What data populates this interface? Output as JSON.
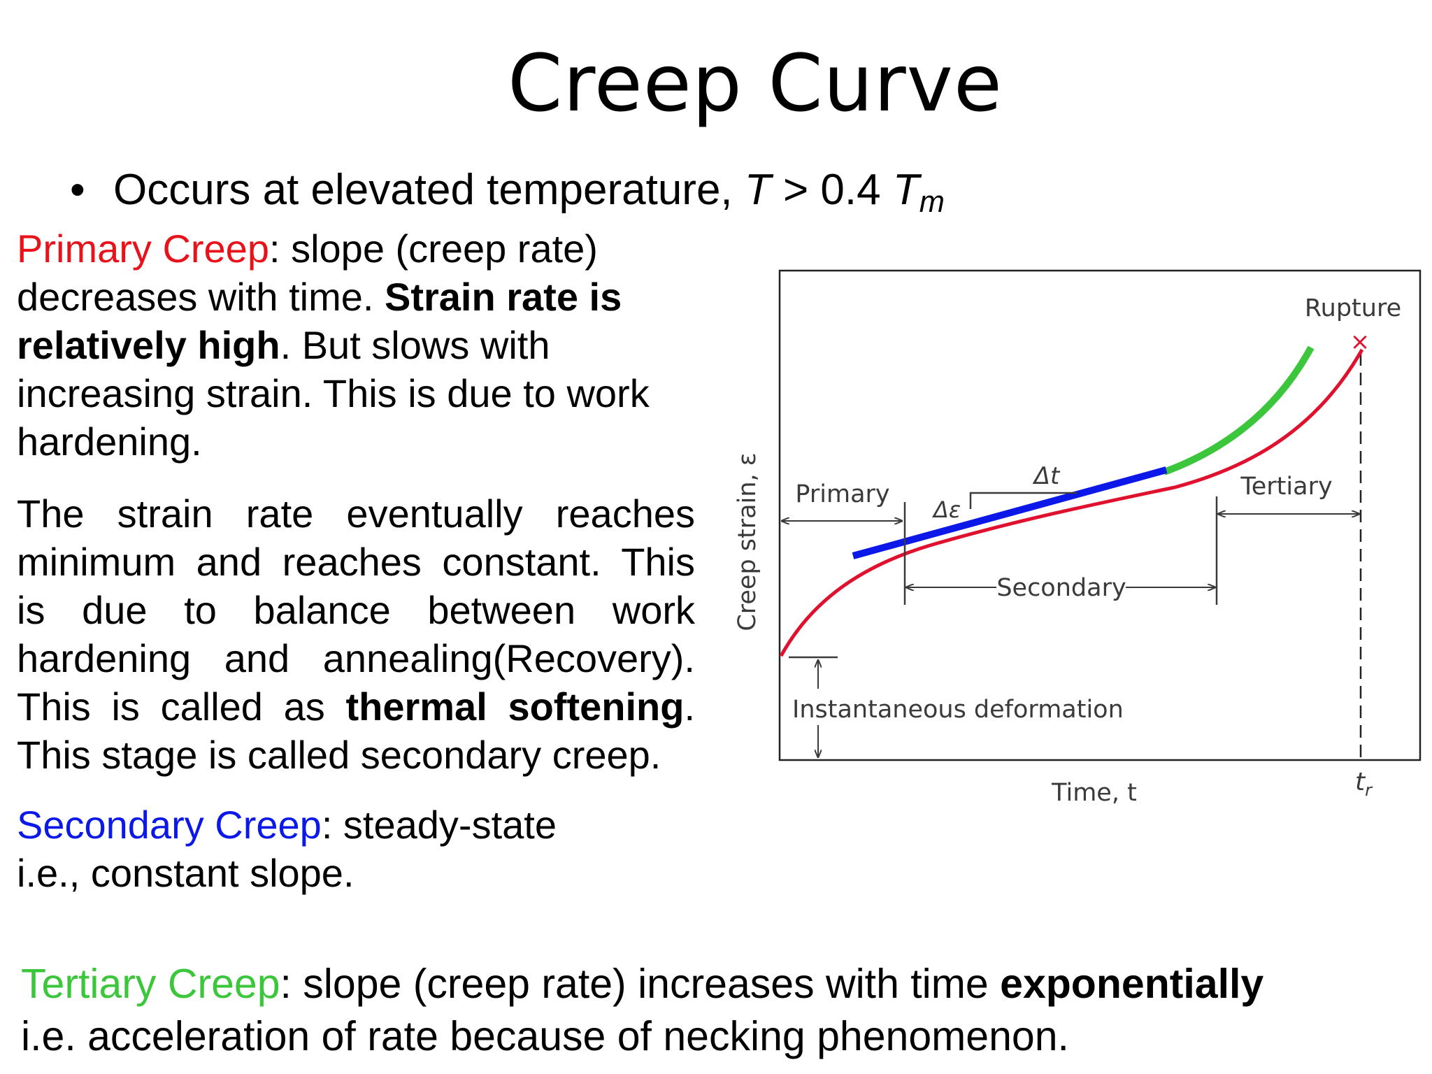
{
  "title": "Creep Curve",
  "bullet": {
    "text": "Occurs at elevated temperature, ",
    "T": "T",
    "relation": " > 0.4 ",
    "Tm_base": "T",
    "Tm_sub": "m"
  },
  "primary": {
    "label": "Primary Creep",
    "text1": ": slope (creep rate) decreases with time. ",
    "bold": "Strain rate is relatively high",
    "text2": ". But slows with increasing strain. This is due to work hardening."
  },
  "strain_para": {
    "text1": "The strain rate eventually reaches minimum and reaches constant. This is due to balance between work hardening and annealing(Recovery). This is called as ",
    "bold": "thermal softening",
    "text2": ". This stage is called secondary creep."
  },
  "secondary": {
    "label": "Secondary Creep",
    "text1": ": steady-state",
    "text2": "i.e., constant slope."
  },
  "tertiary": {
    "label": "Tertiary Creep",
    "text1": ": slope (creep rate) increases with time ",
    "bold": "exponentially",
    "text2": "i.e. acceleration of rate because of necking phenomenon."
  },
  "diagram": {
    "y_axis_label": "Creep strain, ε",
    "x_axis_label": "Time, t",
    "rupture_label": "Rupture",
    "rupture_marker": "×",
    "tr_label": "t",
    "tr_sub": "r",
    "primary_label": "Primary",
    "secondary_label": "Secondary",
    "tertiary_label": "Tertiary",
    "delta_t_label": "Δt",
    "delta_eps_label": "Δε",
    "instant_label": "Instantaneous deformation",
    "colors": {
      "creep_curve": "#e0112e",
      "secondary_highlight": "#0b18e8",
      "tertiary_highlight": "#3cc63c",
      "annotation": "#3a3a3a",
      "frame": "#222222"
    }
  }
}
